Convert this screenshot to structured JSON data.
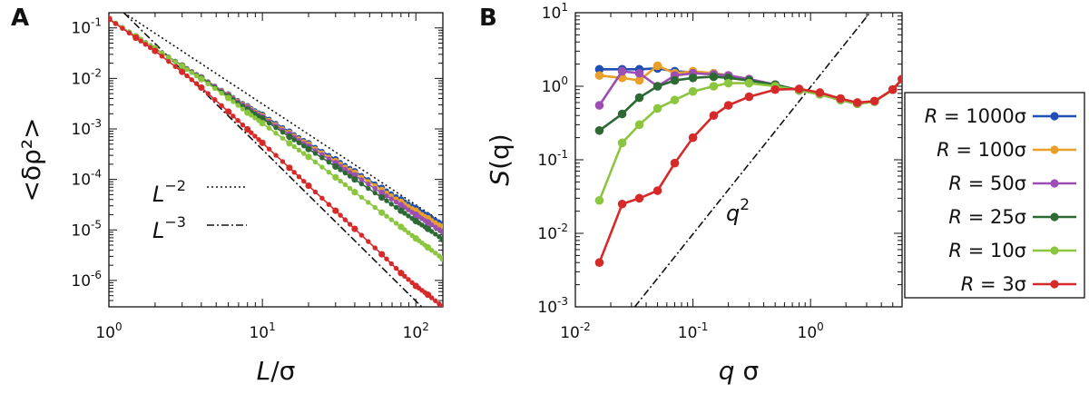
{
  "chart_data": [
    {
      "panel": "A",
      "type": "line",
      "xscale": "log",
      "yscale": "log",
      "xlim": [
        1,
        150
      ],
      "ylim": [
        3e-07,
        0.2
      ],
      "xlabel": "L/σ",
      "ylabel": "<δρ²>",
      "xticks": [
        {
          "base": "10",
          "exp": "0",
          "value": 1
        },
        {
          "base": "10",
          "exp": "1",
          "value": 10
        },
        {
          "base": "10",
          "exp": "2",
          "value": 100
        }
      ],
      "yticks": [
        {
          "base": "10",
          "exp": "-1",
          "value": 0.1
        },
        {
          "base": "10",
          "exp": "-2",
          "value": 0.01
        },
        {
          "base": "10",
          "exp": "-3",
          "value": 0.001
        },
        {
          "base": "10",
          "exp": "-4",
          "value": 0.0001
        },
        {
          "base": "10",
          "exp": "-5",
          "value": 1e-05
        },
        {
          "base": "10",
          "exp": "-6",
          "value": 1e-06
        }
      ],
      "series": [
        {
          "name": "R = 1000σ",
          "color": "#1f4fb5",
          "x": [
            1,
            1.5,
            2,
            3,
            4,
            6,
            8,
            10,
            15,
            20,
            30,
            40,
            60,
            80,
            100,
            120,
            150
          ],
          "y": [
            0.15,
            0.068,
            0.039,
            0.018,
            0.0105,
            0.0048,
            0.0028,
            0.0019,
            0.00088,
            0.00052,
            0.00025,
            0.000145,
            6.8e-05,
            4e-05,
            2.7e-05,
            1.9e-05,
            1.3e-05
          ]
        },
        {
          "name": "R = 100σ",
          "color": "#e8a02a",
          "x": [
            1,
            1.5,
            2,
            3,
            4,
            6,
            8,
            10,
            15,
            20,
            30,
            40,
            60,
            80,
            100,
            120,
            150
          ],
          "y": [
            0.15,
            0.068,
            0.039,
            0.018,
            0.0104,
            0.0047,
            0.0027,
            0.0018,
            0.00083,
            0.00049,
            0.00023,
            0.000135,
            6.2e-05,
            3.6e-05,
            2.4e-05,
            1.7e-05,
            1.15e-05
          ]
        },
        {
          "name": "R = 50σ",
          "color": "#9c4fb3",
          "x": [
            1,
            1.5,
            2,
            3,
            4,
            6,
            8,
            10,
            15,
            20,
            30,
            40,
            60,
            80,
            100,
            120,
            150
          ],
          "y": [
            0.15,
            0.068,
            0.039,
            0.018,
            0.0103,
            0.0046,
            0.0026,
            0.0017,
            0.00078,
            0.00045,
            0.00021,
            0.00012,
            5.4e-05,
            3.1e-05,
            2e-05,
            1.4e-05,
            9.2e-06
          ]
        },
        {
          "name": "R = 25σ",
          "color": "#2d6a33",
          "x": [
            1,
            1.5,
            2,
            3,
            4,
            6,
            8,
            10,
            15,
            20,
            30,
            40,
            60,
            80,
            100,
            120,
            150
          ],
          "y": [
            0.15,
            0.068,
            0.039,
            0.0178,
            0.01,
            0.0044,
            0.0024,
            0.0016,
            0.0007,
            0.0004,
            0.00018,
            0.0001,
            4.4e-05,
            2.4e-05,
            1.5e-05,
            1.05e-05,
            6.5e-06
          ]
        },
        {
          "name": "R = 10σ",
          "color": "#8cc63f",
          "x": [
            1,
            1.5,
            2,
            3,
            4,
            6,
            8,
            10,
            15,
            20,
            30,
            40,
            60,
            80,
            100,
            120,
            150
          ],
          "y": [
            0.15,
            0.068,
            0.039,
            0.0175,
            0.0097,
            0.0041,
            0.0021,
            0.0013,
            0.00052,
            0.00028,
            0.00011,
            5.6e-05,
            2.2e-05,
            1.15e-05,
            6.8e-06,
            4.5e-06,
            2.7e-06
          ]
        },
        {
          "name": "R = 3σ",
          "color": "#d62a2a",
          "x": [
            1,
            1.5,
            2,
            3,
            4,
            6,
            8,
            10,
            15,
            20,
            30,
            40,
            60,
            80,
            100,
            120,
            150
          ],
          "y": [
            0.15,
            0.064,
            0.035,
            0.0135,
            0.0066,
            0.0022,
            0.00098,
            0.00053,
            0.00017,
            7.5e-05,
            2.4e-05,
            1.05e-05,
            3.3e-06,
            1.4e-06,
            7.8e-07,
            5.2e-07,
            3e-07
          ]
        }
      ],
      "reference_lines": [
        {
          "label_base": "L",
          "label_exp": "−2",
          "style": "dotted",
          "x": [
            1.25,
            150
          ],
          "y": [
            0.2,
            1.39e-05
          ]
        },
        {
          "label_base": "L",
          "label_exp": "−3",
          "style": "dashdot",
          "x": [
            1.25,
            150
          ],
          "y": [
            0.2,
            1.16e-07
          ]
        }
      ],
      "point_every": 4
    },
    {
      "panel": "B",
      "type": "line",
      "xscale": "log",
      "yscale": "log",
      "xlim": [
        0.01,
        6
      ],
      "ylim": [
        0.001,
        10
      ],
      "xlabel": "q σ",
      "ylabel": "S(q)",
      "xticks": [
        {
          "base": "10",
          "exp": "-2",
          "value": 0.01
        },
        {
          "base": "10",
          "exp": "-1",
          "value": 0.1
        },
        {
          "base": "10",
          "exp": "0",
          "value": 1
        }
      ],
      "yticks": [
        {
          "base": "10",
          "exp": "1",
          "value": 10
        },
        {
          "base": "10",
          "exp": "0",
          "value": 1
        },
        {
          "base": "10",
          "exp": "-1",
          "value": 0.1
        },
        {
          "base": "10",
          "exp": "-2",
          "value": 0.01
        },
        {
          "base": "10",
          "exp": "-3",
          "value": 0.001
        }
      ],
      "series": [
        {
          "name": "R = 1000σ",
          "color": "#1f4fb5",
          "x": [
            0.016,
            0.025,
            0.035,
            0.05,
            0.07,
            0.1,
            0.15,
            0.2,
            0.3,
            0.5,
            0.8,
            1.2,
            1.8,
            2.5,
            3.5,
            5,
            6
          ],
          "y": [
            1.7,
            1.7,
            1.7,
            1.75,
            1.6,
            1.55,
            1.5,
            1.4,
            1.25,
            1.05,
            0.88,
            0.78,
            0.65,
            0.58,
            0.62,
            0.9,
            1.25
          ]
        },
        {
          "name": "R = 100σ",
          "color": "#e8a02a",
          "x": [
            0.016,
            0.025,
            0.035,
            0.05,
            0.07,
            0.1,
            0.15,
            0.2,
            0.3,
            0.5,
            0.8,
            1.2,
            1.8,
            2.5,
            3.5,
            5,
            6
          ],
          "y": [
            1.4,
            1.3,
            1.2,
            1.9,
            1.5,
            1.6,
            1.5,
            1.4,
            1.25,
            1.05,
            0.88,
            0.78,
            0.65,
            0.58,
            0.62,
            0.9,
            1.25
          ]
        },
        {
          "name": "R = 50σ",
          "color": "#9c4fb3",
          "x": [
            0.016,
            0.025,
            0.035,
            0.05,
            0.07,
            0.1,
            0.15,
            0.2,
            0.3,
            0.5,
            0.8,
            1.2,
            1.8,
            2.5,
            3.5,
            5,
            6
          ],
          "y": [
            0.55,
            1.6,
            1.5,
            1.0,
            1.4,
            1.5,
            1.45,
            1.4,
            1.25,
            1.05,
            0.88,
            0.78,
            0.65,
            0.58,
            0.62,
            0.9,
            1.25
          ]
        },
        {
          "name": "R = 25σ",
          "color": "#2d6a33",
          "x": [
            0.016,
            0.025,
            0.035,
            0.05,
            0.07,
            0.1,
            0.15,
            0.2,
            0.3,
            0.5,
            0.8,
            1.2,
            1.8,
            2.5,
            3.5,
            5,
            6
          ],
          "y": [
            0.25,
            0.42,
            0.7,
            1.0,
            1.2,
            1.3,
            1.35,
            1.3,
            1.2,
            1.05,
            0.88,
            0.78,
            0.65,
            0.58,
            0.62,
            0.9,
            1.25
          ]
        },
        {
          "name": "R = 10σ",
          "color": "#8cc63f",
          "x": [
            0.016,
            0.025,
            0.035,
            0.05,
            0.07,
            0.1,
            0.15,
            0.2,
            0.3,
            0.5,
            0.8,
            1.2,
            1.8,
            2.5,
            3.5,
            5,
            6
          ],
          "y": [
            0.028,
            0.17,
            0.3,
            0.5,
            0.65,
            0.85,
            1.0,
            1.1,
            1.1,
            1.0,
            0.88,
            0.78,
            0.65,
            0.58,
            0.62,
            0.9,
            1.25
          ]
        },
        {
          "name": "R = 3σ",
          "color": "#d62a2a",
          "x": [
            0.016,
            0.025,
            0.035,
            0.05,
            0.07,
            0.1,
            0.15,
            0.2,
            0.3,
            0.5,
            0.8,
            1.2,
            1.8,
            2.5,
            3.5,
            5,
            6
          ],
          "y": [
            0.004,
            0.025,
            0.03,
            0.038,
            0.09,
            0.2,
            0.4,
            0.55,
            0.72,
            0.9,
            0.92,
            0.82,
            0.68,
            0.6,
            0.63,
            0.9,
            1.25
          ]
        }
      ],
      "reference_lines": [
        {
          "label_base": "q",
          "label_exp": "2",
          "style": "dashdot",
          "x": [
            0.032,
            4.7
          ],
          "y": [
            0.001,
            21.6
          ]
        }
      ],
      "point_every": 1
    }
  ],
  "panel_a": {
    "letter": "A",
    "ylabel": "<δρ²>",
    "xlabel_main": "L",
    "xlabel_rest": "/σ",
    "ref_minus2_base": "L",
    "ref_minus2_exp": "−2",
    "ref_minus3_base": "L",
    "ref_minus3_exp": "−3"
  },
  "panel_b": {
    "letter": "B",
    "ylabel_main": "S",
    "ylabel_rest": "(q)",
    "xlabel_main": "q",
    "xlabel_rest": " σ",
    "ref_base": "q",
    "ref_exp": "2"
  },
  "legend": [
    {
      "italic": "R",
      "rest": " = 1000σ",
      "color": "#1f4fb5"
    },
    {
      "italic": "R",
      "rest": " = 100σ",
      "color": "#e8a02a"
    },
    {
      "italic": "R",
      "rest": " = 50σ",
      "color": "#9c4fb3"
    },
    {
      "italic": "R",
      "rest": " = 25σ",
      "color": "#2d6a33"
    },
    {
      "italic": "R",
      "rest": " = 10σ",
      "color": "#8cc63f"
    },
    {
      "italic": "R",
      "rest": " = 3σ",
      "color": "#d62a2a"
    }
  ]
}
